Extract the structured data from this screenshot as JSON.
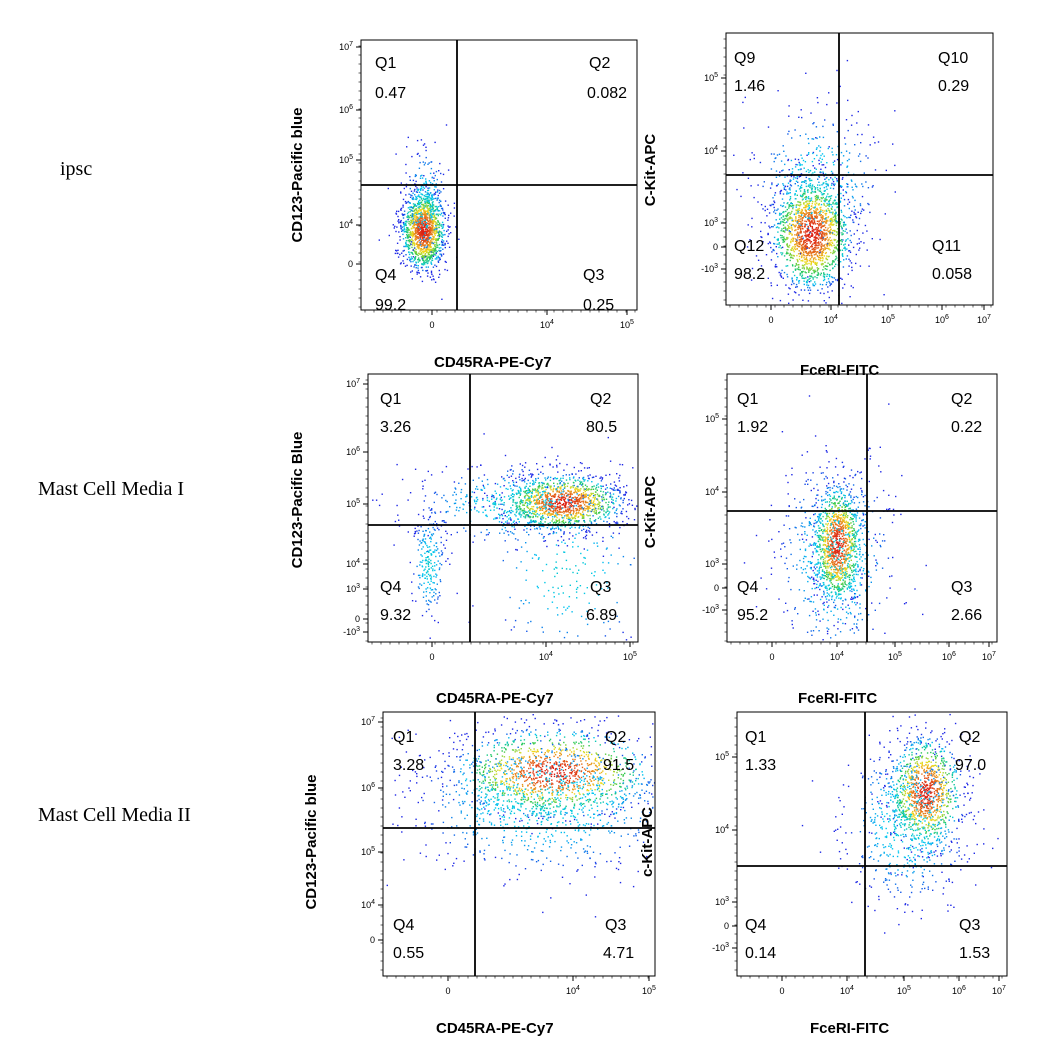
{
  "rows": [
    {
      "label": "ipsc"
    },
    {
      "label": "Mast Cell Media I"
    },
    {
      "label": "Mast Cell Media II"
    }
  ],
  "chart_data": [
    {
      "type": "scatter",
      "condition": "ipsc",
      "xlabel": "CD45RA-PE-Cy7",
      "ylabel": "CD123-Pacific blue",
      "x_ticks": [
        "0",
        "10^4",
        "10^5"
      ],
      "y_ticks": [
        "10^7",
        "10^6",
        "10^5",
        "10^4",
        "0"
      ],
      "quadrants": [
        {
          "name": "Q1",
          "value": "0.47"
        },
        {
          "name": "Q2",
          "value": "0.082"
        },
        {
          "name": "Q3",
          "value": "0.25"
        },
        {
          "name": "Q4",
          "value": "99.2"
        }
      ]
    },
    {
      "type": "scatter",
      "condition": "ipsc",
      "xlabel": "FceRI-FITC",
      "ylabel": "C-Kit-APC",
      "x_ticks": [
        "0",
        "10^4",
        "10^5",
        "10^6",
        "10^7"
      ],
      "y_ticks": [
        "10^5",
        "10^4",
        "10^3",
        "0",
        "-10^3"
      ],
      "quadrants": [
        {
          "name": "Q9",
          "value": "1.46"
        },
        {
          "name": "Q10",
          "value": "0.29"
        },
        {
          "name": "Q11",
          "value": "0.058"
        },
        {
          "name": "Q12",
          "value": "98.2"
        }
      ]
    },
    {
      "type": "scatter",
      "condition": "Mast Cell Media I",
      "xlabel": "CD45RA-PE-Cy7",
      "ylabel": "CD123-Pacific Blue",
      "x_ticks": [
        "0",
        "10^4",
        "10^5"
      ],
      "y_ticks": [
        "10^7",
        "10^6",
        "10^5",
        "10^4",
        "10^3",
        "0",
        "-10^3"
      ],
      "quadrants": [
        {
          "name": "Q1",
          "value": "3.26"
        },
        {
          "name": "Q2",
          "value": "80.5"
        },
        {
          "name": "Q3",
          "value": "6.89"
        },
        {
          "name": "Q4",
          "value": "9.32"
        }
      ]
    },
    {
      "type": "scatter",
      "condition": "Mast Cell Media I",
      "xlabel": "FceRI-FITC",
      "ylabel": "C-Kit-APC",
      "x_ticks": [
        "0",
        "10^4",
        "10^5",
        "10^6",
        "10^7"
      ],
      "y_ticks": [
        "10^5",
        "10^4",
        "10^3",
        "0",
        "-10^3"
      ],
      "quadrants": [
        {
          "name": "Q1",
          "value": "1.92"
        },
        {
          "name": "Q2",
          "value": "0.22"
        },
        {
          "name": "Q3",
          "value": "2.66"
        },
        {
          "name": "Q4",
          "value": "95.2"
        }
      ]
    },
    {
      "type": "scatter",
      "condition": "Mast Cell Media II",
      "xlabel": "CD45RA-PE-Cy7",
      "ylabel": "CD123-Pacific blue",
      "x_ticks": [
        "0",
        "10^4",
        "10^5"
      ],
      "y_ticks": [
        "10^7",
        "10^6",
        "10^5",
        "10^4",
        "0"
      ],
      "quadrants": [
        {
          "name": "Q1",
          "value": "3.28"
        },
        {
          "name": "Q2",
          "value": "91.5"
        },
        {
          "name": "Q3",
          "value": "4.71"
        },
        {
          "name": "Q4",
          "value": "0.55"
        }
      ]
    },
    {
      "type": "scatter",
      "condition": "Mast Cell Media II",
      "xlabel": "FceRI-FITC",
      "ylabel": "c-Kit-APC",
      "x_ticks": [
        "0",
        "10^4",
        "10^5",
        "10^6",
        "10^7"
      ],
      "y_ticks": [
        "10^5",
        "10^4",
        "10^3",
        "0",
        "-10^3"
      ],
      "quadrants": [
        {
          "name": "Q1",
          "value": "1.33"
        },
        {
          "name": "Q2",
          "value": "97.0"
        },
        {
          "name": "Q3",
          "value": "1.53"
        },
        {
          "name": "Q4",
          "value": "0.14"
        }
      ]
    }
  ]
}
